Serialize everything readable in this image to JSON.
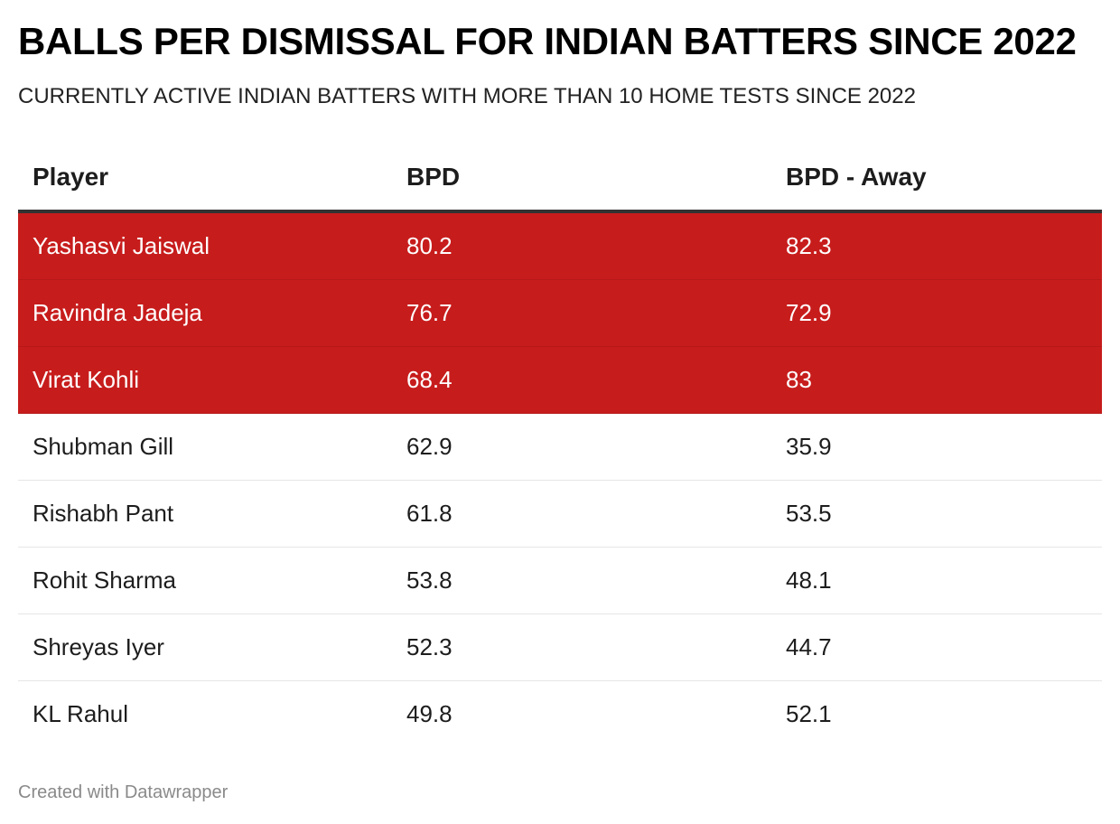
{
  "header": {
    "title": "BALLS PER DISMISSAL FOR INDIAN BATTERS SINCE 2022",
    "subtitle": "CURRENTLY ACTIVE INDIAN BATTERS WITH MORE THAN 10 HOME TESTS SINCE 2022"
  },
  "colors": {
    "highlight_row": "#c71c1c",
    "highlight_text": "#ffffff",
    "header_rule": "#333333"
  },
  "chart_data": {
    "type": "table",
    "title": "BALLS PER DISMISSAL FOR INDIAN BATTERS SINCE 2022",
    "subtitle": "CURRENTLY ACTIVE INDIAN BATTERS WITH MORE THAN 10 HOME TESTS SINCE 2022",
    "columns": [
      "Player",
      "BPD",
      "BPD - Away"
    ],
    "rows": [
      {
        "player": "Yashasvi Jaiswal",
        "bpd": "80.2",
        "bpd_away": "82.3",
        "highlighted": true
      },
      {
        "player": "Ravindra Jadeja",
        "bpd": "76.7",
        "bpd_away": "72.9",
        "highlighted": true
      },
      {
        "player": "Virat Kohli",
        "bpd": "68.4",
        "bpd_away": "83",
        "highlighted": true
      },
      {
        "player": "Shubman Gill",
        "bpd": "62.9",
        "bpd_away": "35.9",
        "highlighted": false
      },
      {
        "player": "Rishabh Pant",
        "bpd": "61.8",
        "bpd_away": "53.5",
        "highlighted": false
      },
      {
        "player": "Rohit Sharma",
        "bpd": "53.8",
        "bpd_away": "48.1",
        "highlighted": false
      },
      {
        "player": "Shreyas Iyer",
        "bpd": "52.3",
        "bpd_away": "44.7",
        "highlighted": false
      },
      {
        "player": "KL Rahul",
        "bpd": "49.8",
        "bpd_away": "52.1",
        "highlighted": false
      }
    ]
  },
  "footer": {
    "credit": "Created with Datawrapper"
  }
}
